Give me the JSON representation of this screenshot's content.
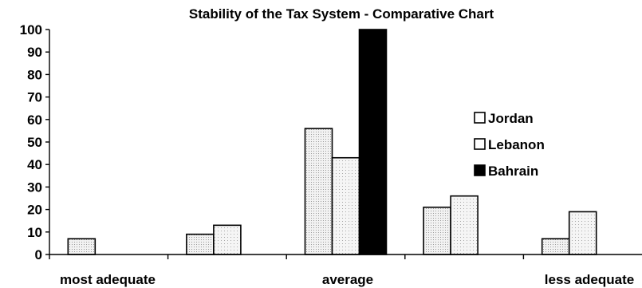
{
  "chart_data": {
    "type": "bar",
    "title": "Stability of the Tax System - Comparative Chart",
    "xlabel": "",
    "ylabel": "",
    "ylim": [
      0,
      100
    ],
    "yticks": [
      "0",
      "10",
      "20",
      "30",
      "40",
      "50",
      "60",
      "70",
      "80",
      "90",
      "100"
    ],
    "categories": [
      "most adequate",
      "",
      "average",
      "",
      "less adequate"
    ],
    "series": [
      {
        "name": "Jordan",
        "values": [
          7,
          9,
          56,
          21,
          7
        ],
        "color": "#e4e4e4"
      },
      {
        "name": "Lebanon",
        "values": [
          0,
          13,
          43,
          26,
          19
        ],
        "color": "#eeeeee"
      },
      {
        "name": "Bahrain",
        "values": [
          0,
          0,
          100,
          0,
          0
        ],
        "color": "#000000"
      }
    ],
    "grid": false,
    "legend": "right"
  }
}
